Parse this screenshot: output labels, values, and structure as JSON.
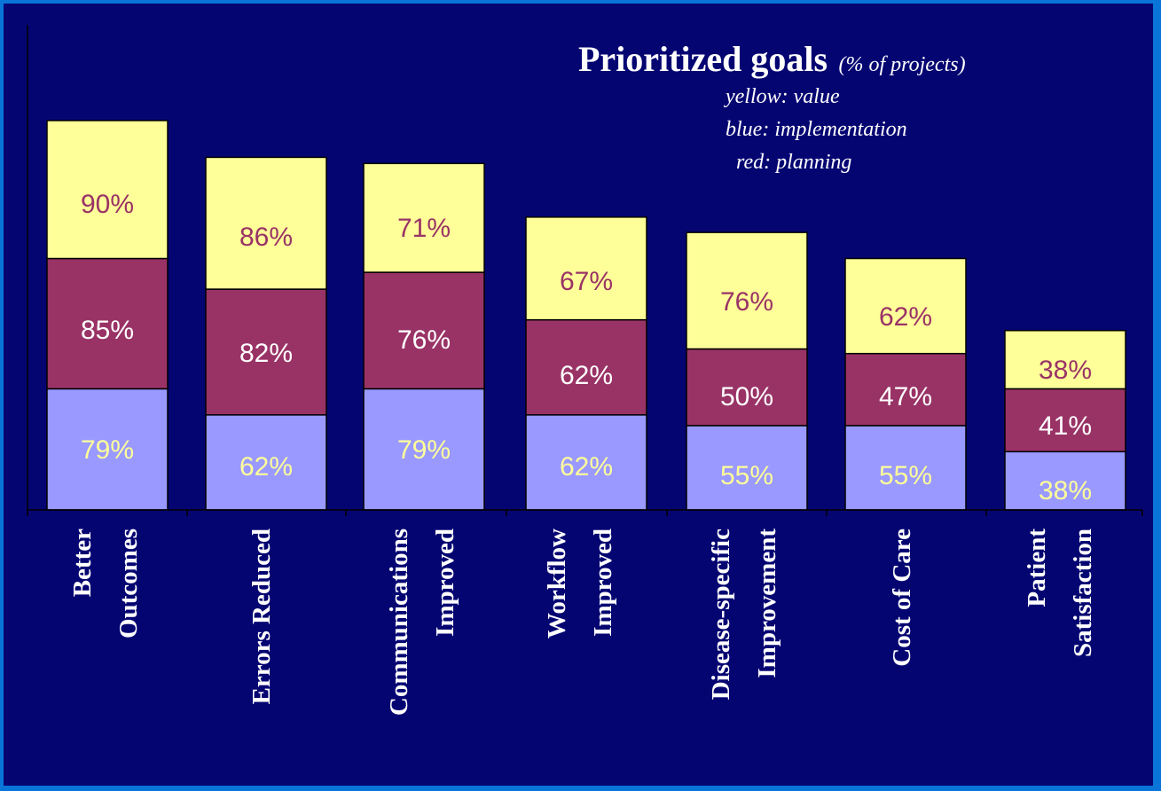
{
  "chart_data": {
    "type": "bar",
    "stacked": true,
    "title": "Prioritized goals",
    "subtitle": "(% of projects)",
    "legend": [
      "yellow: value",
      "blue: implementation",
      "red: planning"
    ],
    "categories": [
      [
        "Better",
        "Outcomes"
      ],
      [
        "Errors Reduced"
      ],
      [
        "Communications",
        "Improved"
      ],
      [
        "Workflow",
        "Improved"
      ],
      [
        "Disease-specific",
        "Improvement"
      ],
      [
        "Cost of Care"
      ],
      [
        "Patient",
        "Satisfaction"
      ]
    ],
    "series": [
      {
        "key": "implementation",
        "color": "#9999ff",
        "label_color": "#ffff99",
        "values": [
          79,
          62,
          79,
          62,
          55,
          55,
          38
        ],
        "labels": [
          "79%",
          "62%",
          "79%",
          "62%",
          "55%",
          "55%",
          "38%"
        ]
      },
      {
        "key": "planning",
        "color": "#993366",
        "label_color": "#ffffff",
        "values": [
          85,
          82,
          76,
          62,
          50,
          47,
          41
        ],
        "labels": [
          "85%",
          "82%",
          "76%",
          "62%",
          "50%",
          "47%",
          "41%"
        ]
      },
      {
        "key": "value",
        "color": "#ffff99",
        "label_color": "#993366",
        "values": [
          90,
          86,
          71,
          67,
          76,
          62,
          38
        ],
        "labels": [
          "90%",
          "86%",
          "71%",
          "67%",
          "76%",
          "62%",
          "38%"
        ]
      }
    ],
    "ylim": [
      0,
      280
    ],
    "grid": false,
    "legend_position": "top-right"
  },
  "colors": {
    "background": "#050572",
    "border": "#0a75d8",
    "axis": "#000000"
  }
}
